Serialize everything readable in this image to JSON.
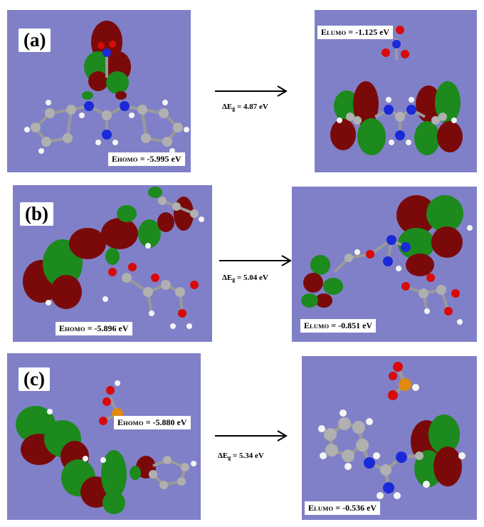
{
  "rows": [
    {
      "tag": "(a)",
      "homo": {
        "prefix": "E",
        "sub": "HOMO",
        "value": " = -5.995 eV"
      },
      "lumo": {
        "prefix": "E",
        "sub": "LUMO",
        "value": " = -1.125 eV"
      },
      "gap": {
        "prefix": "ΔE",
        "sub": "g",
        "value": " = 4.87 eV"
      }
    },
    {
      "tag": "(b)",
      "homo": {
        "prefix": "E",
        "sub": "HOMO",
        "value": " = -5.896 eV"
      },
      "lumo": {
        "prefix": "E",
        "sub": "LUMO",
        "value": " = -0.851 eV"
      },
      "gap": {
        "prefix": "ΔE",
        "sub": "g",
        "value": " = 5.04 eV"
      }
    },
    {
      "tag": "(c)",
      "homo": {
        "prefix": "E",
        "sub": "HOMO",
        "value": " = -5.880 eV"
      },
      "lumo": {
        "prefix": "E",
        "sub": "LUMO",
        "value": " = -0.536 eV"
      },
      "gap": {
        "prefix": "ΔE",
        "sub": "g",
        "value": " = 5.34 eV"
      }
    }
  ],
  "colors": {
    "panel_bg": "#8080c8",
    "lobe_red": "#7a0a0a",
    "lobe_green": "#1c8a1c",
    "atom_carbon": "#b0b0b0",
    "atom_hydrogen": "#f4f4f4",
    "atom_nitrogen": "#1a2ad8",
    "atom_oxygen": "#d80a0a",
    "atom_phosphorus": "#e08a10"
  }
}
